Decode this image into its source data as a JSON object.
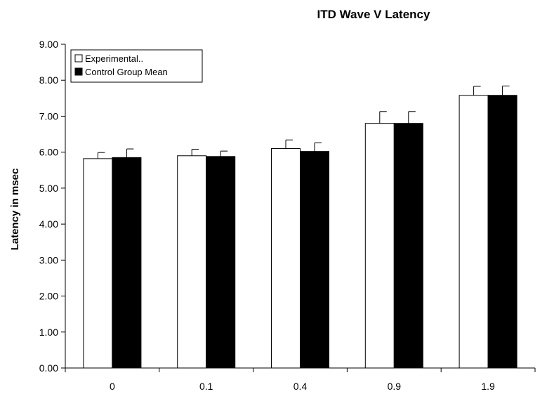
{
  "chart_data": {
    "type": "bar",
    "title": "ITD Wave V Latency",
    "xlabel": "",
    "ylabel": "Latency in msec",
    "categories": [
      "0",
      "0.1",
      "0.4",
      "0.9",
      "1.9"
    ],
    "ylim": [
      0,
      9
    ],
    "yticks": [
      "0.00",
      "1.00",
      "2.00",
      "3.00",
      "4.00",
      "5.00",
      "6.00",
      "7.00",
      "8.00",
      "9.00"
    ],
    "grid": false,
    "legend_position": "top-left",
    "series": [
      {
        "name": "Experimental..",
        "color": "#ffffff",
        "values": [
          5.82,
          5.9,
          6.1,
          6.8,
          7.58
        ],
        "error": [
          0.17,
          0.18,
          0.24,
          0.33,
          0.25
        ]
      },
      {
        "name": "Control Group Mean",
        "color": "#000000",
        "values": [
          5.85,
          5.88,
          6.02,
          6.8,
          7.58
        ],
        "error": [
          0.24,
          0.15,
          0.24,
          0.33,
          0.26
        ]
      }
    ]
  }
}
